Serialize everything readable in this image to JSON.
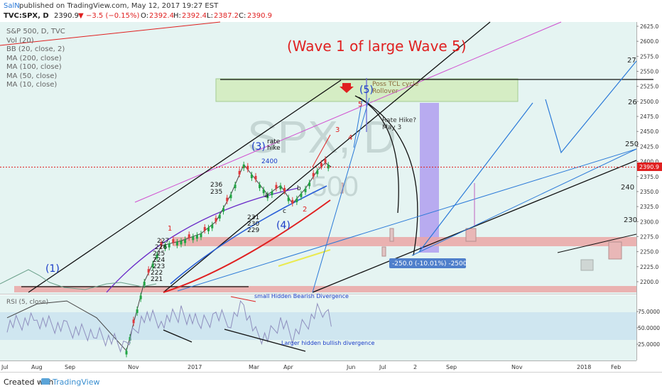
{
  "header": {
    "author": "SalN",
    "published_text": "published on TradingView.com, May 12, 2017 19:27 EST",
    "symbol_line": "TVC:SPX, D",
    "last": "2390.9",
    "change": "−3.5 (−0.15%)",
    "open_label": "O:",
    "open": "2392.4",
    "high_label": "H:",
    "high": "2392.4",
    "low_label": "L:",
    "low": "2387.2",
    "close_label": "C:",
    "close": "2390.9"
  },
  "legend": {
    "title": "S&P 500, D, TVC",
    "items": [
      "Vol (20)",
      "BB (20, close, 2)",
      "MA (200, close)",
      "MA (100, close)",
      "MA (50, close)",
      "MA (10, close)"
    ]
  },
  "watermark": {
    "big": "SPX, D",
    "small": "500"
  },
  "annotations": {
    "main_title": "(Wave 1 of large Wave 5)",
    "poss_cycle": "Poss TCL cycle",
    "rollover": "Rollover",
    "rate_hike_q": "Rate Hike?",
    "may3": "May 3",
    "rate_hike": "rate",
    "hike": "hike",
    "wave1": "(1)",
    "wave3": "(3)",
    "wave4": "(4)",
    "wave5": "(5)",
    "l3": "3",
    "l4": "4",
    "l5": "5",
    "l2": "2",
    "l1": "1",
    "la": "a",
    "lb": "b",
    "lc": "c",
    "n236": "236",
    "n235": "235",
    "n231": "231",
    "n230": "230",
    "n229": "229",
    "n227": "227",
    "n226": "226",
    "n225": "225",
    "n224": "224",
    "n223": "223",
    "n222": "222",
    "n221": "221",
    "n2400": "2400",
    "r27": "27",
    "r26": "26",
    "r250": "250",
    "r240": "240",
    "r230": "230",
    "measure": "-250.0 (-10.01%) -2500",
    "rsi_label": "RSI (5, close)",
    "bear_div": "small Hidden Bearish Divergence",
    "bull_div": "Larger hidden bullish divergence"
  },
  "chart_data": {
    "type": "line",
    "title": "S&P 500, D, TVC",
    "price_axis": {
      "ticks": [
        2200,
        2225,
        2250,
        2275,
        2300,
        2325,
        2350,
        2375,
        2400,
        2425,
        2450,
        2475,
        2500,
        2525,
        2550,
        2575,
        2600,
        2625
      ],
      "labels": [
        "2200.0",
        "2225.0",
        "2250.0",
        "2275.0",
        "2300.0",
        "2325.0",
        "2350.0",
        "2375.0",
        "2400.0",
        "2425.0",
        "2450.0",
        "2475.0",
        "2500.0",
        "2525.0",
        "2550.0",
        "2575.0",
        "2600.0",
        "2625.0"
      ],
      "last_price": 2390.9,
      "last_label": "2390.9",
      "range": [
        2190,
        2630
      ]
    },
    "rsi_axis": {
      "ticks": [
        25,
        50,
        75
      ],
      "labels": [
        "25.0000",
        "50.0000",
        "75.0000"
      ],
      "range": [
        0,
        100
      ]
    },
    "time_axis": {
      "labels": [
        "Jul",
        "Aug",
        "Sep",
        "Nov",
        "2017",
        "Mar",
        "Apr",
        "Jun",
        "Jul",
        "2",
        "Sep",
        "Nov",
        "2018",
        "Feb"
      ]
    },
    "price_series": [
      {
        "d": 0,
        "c": 2140
      },
      {
        "d": 30,
        "c": 2163
      },
      {
        "d": 60,
        "c": 2168
      },
      {
        "d": 90,
        "c": 2140
      },
      {
        "d": 120,
        "c": 2085
      },
      {
        "d": 138,
        "c": 2200
      },
      {
        "d": 155,
        "c": 2260
      },
      {
        "d": 175,
        "c": 2268
      },
      {
        "d": 195,
        "c": 2280
      },
      {
        "d": 210,
        "c": 2300
      },
      {
        "d": 225,
        "c": 2345
      },
      {
        "d": 238,
        "c": 2395
      },
      {
        "d": 250,
        "c": 2370
      },
      {
        "d": 262,
        "c": 2345
      },
      {
        "d": 275,
        "c": 2360
      },
      {
        "d": 287,
        "c": 2330
      },
      {
        "d": 300,
        "c": 2355
      },
      {
        "d": 312,
        "c": 2385
      },
      {
        "d": 320,
        "c": 2398
      },
      {
        "d": 326,
        "c": 2390.9
      }
    ],
    "rsi_series": [
      {
        "d": 0,
        "v": 55
      },
      {
        "d": 30,
        "v": 62
      },
      {
        "d": 60,
        "v": 48
      },
      {
        "d": 90,
        "v": 40
      },
      {
        "d": 120,
        "v": 22
      },
      {
        "d": 138,
        "v": 70
      },
      {
        "d": 155,
        "v": 60
      },
      {
        "d": 175,
        "v": 72
      },
      {
        "d": 195,
        "v": 55
      },
      {
        "d": 210,
        "v": 68
      },
      {
        "d": 225,
        "v": 62
      },
      {
        "d": 238,
        "v": 85
      },
      {
        "d": 250,
        "v": 40
      },
      {
        "d": 262,
        "v": 35
      },
      {
        "d": 275,
        "v": 60
      },
      {
        "d": 287,
        "v": 38
      },
      {
        "d": 300,
        "v": 55
      },
      {
        "d": 312,
        "v": 75
      },
      {
        "d": 320,
        "v": 80
      },
      {
        "d": 326,
        "v": 52
      }
    ],
    "colors": {
      "plot_bg": "#e5f4f2",
      "up": "#21a544",
      "down": "#e0383c",
      "rsi_line": "#8f8fbe",
      "rsi_band": "#cfe6f0",
      "accent_red": "#e02020",
      "accent_blue": "#2a79d8",
      "purple_zone": "#a58cf0",
      "green_zone": "#d4edc0",
      "red_zone": "#eba6a6"
    }
  },
  "footer": {
    "created": "Created with",
    "brand": "TradingView"
  }
}
